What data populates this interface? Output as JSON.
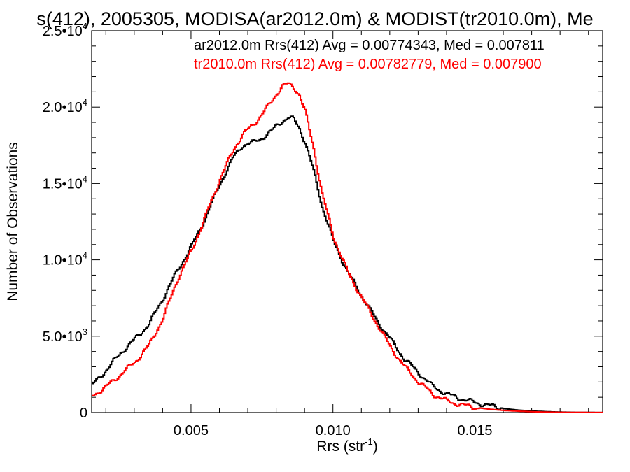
{
  "chart_data": {
    "type": "line",
    "title": "s(412), 2005305, MODISA(ar2012.0m) & MODIST(tr2010.0m), Me",
    "xlabel": "Rrs (str",
    "xlabel_sup": "-1",
    "xlabel_end": ")",
    "ylabel": "Number of Observations",
    "xlim": [
      0.0015,
      0.0195
    ],
    "ylim": [
      0,
      25000
    ],
    "xticks": [
      {
        "value": 0.005,
        "label": "0.005"
      },
      {
        "value": 0.01,
        "label": "0.010"
      },
      {
        "value": 0.015,
        "label": "0.015"
      }
    ],
    "yticks": [
      {
        "value": 0,
        "mant": "0",
        "exp": ""
      },
      {
        "value": 5000,
        "mant": "5.0•10",
        "exp": "3"
      },
      {
        "value": 10000,
        "mant": "1.0•10",
        "exp": "4"
      },
      {
        "value": 15000,
        "mant": "1.5•10",
        "exp": "4"
      },
      {
        "value": 20000,
        "mant": "2.0•10",
        "exp": "4"
      },
      {
        "value": 25000,
        "mant": "2.5•10",
        "exp": "4"
      }
    ],
    "legend": [
      {
        "text": "ar2012.0m Rrs(412) Avg = 0.00774343, Med = 0.007811",
        "color": "#000000"
      },
      {
        "text": "tr2010.0m Rrs(412) Avg = 0.00782779, Med = 0.007900",
        "color": "#ff0000"
      }
    ],
    "series": [
      {
        "color": "#000000",
        "x": [
          0.0015,
          0.002,
          0.0025,
          0.003,
          0.0035,
          0.004,
          0.0045,
          0.005,
          0.0055,
          0.006,
          0.0065,
          0.0068,
          0.0072,
          0.0075,
          0.0078,
          0.008,
          0.0082,
          0.0084,
          0.0086,
          0.0088,
          0.009,
          0.0093,
          0.0096,
          0.01,
          0.0105,
          0.011,
          0.0115,
          0.012,
          0.0125,
          0.013,
          0.0135,
          0.014,
          0.0145,
          0.015,
          0.0155,
          0.016,
          0.0165,
          0.017,
          0.0175,
          0.018,
          0.0185,
          0.019,
          0.0195
        ],
        "y": [
          1800,
          2800,
          3900,
          4800,
          5800,
          7500,
          9300,
          10900,
          12800,
          15000,
          16800,
          17500,
          17700,
          18000,
          18400,
          18800,
          19100,
          19300,
          19200,
          18600,
          17700,
          15800,
          13500,
          11200,
          9200,
          7600,
          6100,
          4800,
          3500,
          2600,
          1700,
          1200,
          900,
          650,
          450,
          260,
          160,
          100,
          60,
          30,
          15,
          8,
          5
        ]
      },
      {
        "color": "#ff0000",
        "x": [
          0.0015,
          0.002,
          0.0025,
          0.003,
          0.0035,
          0.004,
          0.0045,
          0.005,
          0.0055,
          0.006,
          0.0065,
          0.0068,
          0.0072,
          0.0075,
          0.0078,
          0.008,
          0.0082,
          0.0084,
          0.0086,
          0.0088,
          0.009,
          0.0093,
          0.0096,
          0.01,
          0.0105,
          0.011,
          0.0115,
          0.012,
          0.0125,
          0.013,
          0.0135,
          0.014,
          0.0145,
          0.015,
          0.0155,
          0.016,
          0.0165,
          0.017,
          0.0175,
          0.018,
          0.0185,
          0.019,
          0.0195
        ],
        "y": [
          1100,
          1700,
          2500,
          3300,
          4400,
          6200,
          8700,
          10600,
          12900,
          15300,
          17300,
          18200,
          18900,
          19600,
          20300,
          20900,
          21400,
          21500,
          21300,
          20800,
          19700,
          17300,
          14300,
          11500,
          9200,
          7500,
          5900,
          4300,
          3000,
          2000,
          1200,
          750,
          500,
          330,
          220,
          140,
          90,
          55,
          30,
          18,
          10,
          6,
          4
        ]
      }
    ]
  }
}
